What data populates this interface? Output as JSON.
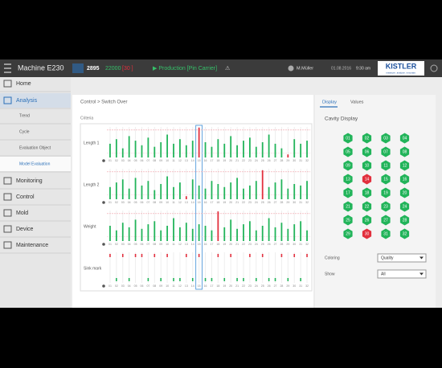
{
  "header": {
    "machine": "Machine E230",
    "count": "2895",
    "target": "22000",
    "cavities": "[30 ]",
    "status": "▶ Production [Pin Carrier]",
    "warning": "⚠",
    "user": "M.Müller",
    "date": "01.08.2016",
    "time": "9:30 am",
    "logo": "KISTLER",
    "tagline": "measure. analyze. innovate."
  },
  "nav": {
    "items": [
      "Home",
      "Analysis",
      "Trend",
      "Cycle",
      "Evaluation Object",
      "Model Evaluation",
      "Monitoring",
      "Control",
      "Mold",
      "Device",
      "Maintenance"
    ]
  },
  "breadcrumb": "Control > Switch Over",
  "criteria": {
    "title": "Criteria",
    "cycles": [
      "01",
      "02",
      "03",
      "04",
      "05",
      "06",
      "07",
      "08",
      "09",
      "10",
      "11",
      "12",
      "13",
      "14",
      "15",
      "16",
      "17",
      "18",
      "19",
      "20",
      "21",
      "22",
      "23",
      "24",
      "25",
      "26",
      "27",
      "28",
      "29",
      "30",
      "31",
      "32"
    ],
    "selected_index": 14,
    "bar_colors": {
      "ok": "#22b45a",
      "bad": "#e2303e"
    },
    "rows": [
      {
        "name": "Length 1",
        "ylim": [
          0,
          100
        ],
        "upper_limit": 90,
        "lower_limit": 15,
        "values": [
          45,
          60,
          30,
          70,
          55,
          40,
          65,
          35,
          50,
          75,
          45,
          60,
          40,
          55,
          98,
          50,
          35,
          60,
          45,
          70,
          40,
          55,
          65,
          35,
          50,
          75,
          45,
          30,
          10,
          60,
          45,
          55
        ]
      },
      {
        "name": "Length 2",
        "ylim": [
          0,
          100
        ],
        "upper_limit": 90,
        "lower_limit": 15,
        "values": [
          40,
          55,
          65,
          35,
          70,
          45,
          60,
          30,
          50,
          75,
          40,
          55,
          10,
          65,
          45,
          35,
          60,
          50,
          40,
          55,
          70,
          35,
          45,
          60,
          95,
          40,
          55,
          65,
          35,
          50,
          45,
          60
        ]
      },
      {
        "name": "Weight",
        "ylim": [
          0,
          100
        ],
        "upper_limit": 90,
        "lower_limit": 15,
        "values": [
          50,
          35,
          60,
          45,
          70,
          40,
          55,
          65,
          35,
          50,
          75,
          45,
          60,
          40,
          55,
          50,
          35,
          97,
          45,
          70,
          40,
          55,
          65,
          35,
          50,
          75,
          45,
          60,
          40,
          55,
          65,
          35
        ]
      }
    ],
    "sink": {
      "name": "Sink mark",
      "values": [
        1,
        0,
        1,
        0,
        1,
        1,
        0,
        1,
        0,
        1,
        0,
        0,
        1,
        0,
        1,
        0,
        0,
        1,
        0,
        1,
        0,
        0,
        1,
        0,
        1,
        0,
        0,
        1,
        0,
        1,
        0,
        1
      ]
    }
  },
  "cavity_panel": {
    "tabs": [
      "Display",
      "Values"
    ],
    "title": "Cavity Display",
    "cavities": [
      "01",
      "02",
      "03",
      "04",
      "05",
      "06",
      "07",
      "08",
      "09",
      "10",
      "11",
      "12",
      "13",
      "14",
      "15",
      "16",
      "17",
      "18",
      "19",
      "20",
      "21",
      "22",
      "23",
      "24",
      "25",
      "26",
      "27",
      "28",
      "29",
      "30",
      "31",
      "32"
    ],
    "status": [
      "ok",
      "ok",
      "ok",
      "ok",
      "ok",
      "ok",
      "ok",
      "ok",
      "ok",
      "ok",
      "ok",
      "ok",
      "ok",
      "bad",
      "ok",
      "ok",
      "ok",
      "ok",
      "ok",
      "ok",
      "ok",
      "ok",
      "ok",
      "ok",
      "ok",
      "ok",
      "ok",
      "ok",
      "ok",
      "bad",
      "ok",
      "ok"
    ],
    "colors": {
      "ok": "#22b45a",
      "bad": "#e2303e"
    },
    "coloring_label": "Coloring",
    "coloring_value": "Quality",
    "show_label": "Show",
    "show_value": "All"
  }
}
